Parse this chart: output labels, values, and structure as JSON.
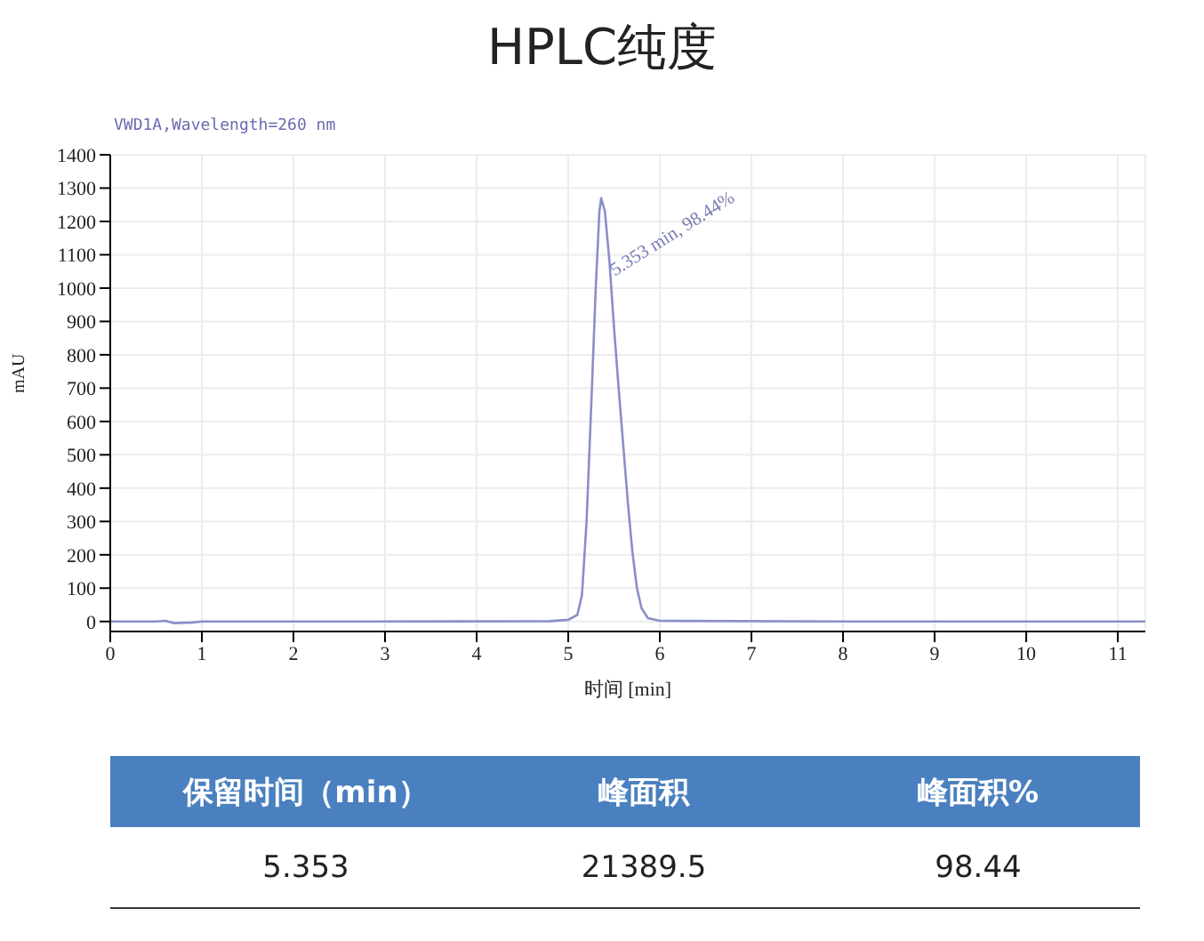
{
  "chart_data": {
    "type": "line",
    "title": "HPLC纯度",
    "subtitle": "VWD1A,Wavelength=260 nm",
    "xlabel": "时间 [min]",
    "ylabel": "mAU",
    "x": [
      0,
      0.5,
      0.6,
      0.7,
      0.9,
      1,
      3,
      4.8,
      5,
      5.1,
      5.15,
      5.2,
      5.25,
      5.3,
      5.34,
      5.36,
      5.4,
      5.45,
      5.5,
      5.55,
      5.6,
      5.65,
      5.7,
      5.75,
      5.8,
      5.87,
      6,
      8,
      11.3
    ],
    "series": [
      {
        "color": "#8a8fc8",
        "values": [
          0,
          0,
          2,
          -5,
          -3,
          0,
          0,
          1,
          5,
          20,
          80,
          300,
          640,
          1000,
          1230,
          1270,
          1230,
          1080,
          880,
          700,
          530,
          360,
          210,
          100,
          40,
          10,
          2,
          0,
          0
        ]
      }
    ],
    "xlim": [
      0,
      11.3
    ],
    "xticks": [
      0,
      1,
      2,
      3,
      4,
      5,
      6,
      7,
      8,
      9,
      10,
      11
    ],
    "ylim": [
      -30,
      1400
    ],
    "yticks": [
      0,
      100,
      200,
      300,
      400,
      500,
      600,
      700,
      800,
      900,
      1000,
      1100,
      1200,
      1300,
      1400
    ],
    "grid": true,
    "legend": false,
    "marker": "none",
    "line_style": "solid",
    "annotations": [
      {
        "text": "5.353 min, 98.44%",
        "x": 5.353,
        "y": 1270
      },
      "保留时间（min）",
      "峰面积",
      "峰面积%",
      "5.353",
      "21389.5",
      "98.44"
    ]
  }
}
